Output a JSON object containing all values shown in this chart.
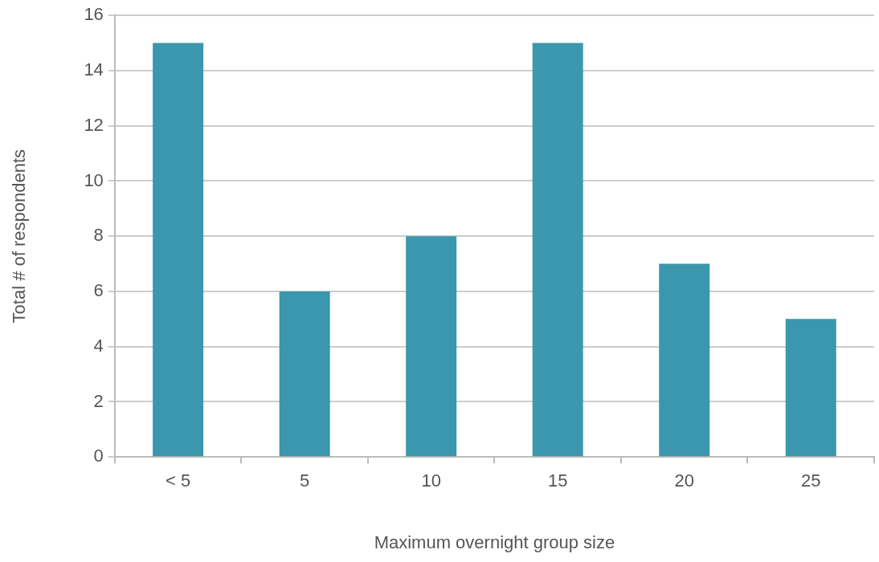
{
  "chart_data": {
    "type": "bar",
    "xlabel": "Maximum overnight group size",
    "ylabel": "Total # of respondents",
    "categories": [
      "< 5",
      "5",
      "10",
      "15",
      "20",
      "25"
    ],
    "values": [
      15,
      6,
      8,
      15,
      7,
      5
    ],
    "color": "#3b97ad",
    "ylim": [
      0,
      16
    ],
    "yticks": [
      0,
      2,
      4,
      6,
      8,
      10,
      12,
      14,
      16
    ],
    "grid": "y",
    "legend": false
  }
}
